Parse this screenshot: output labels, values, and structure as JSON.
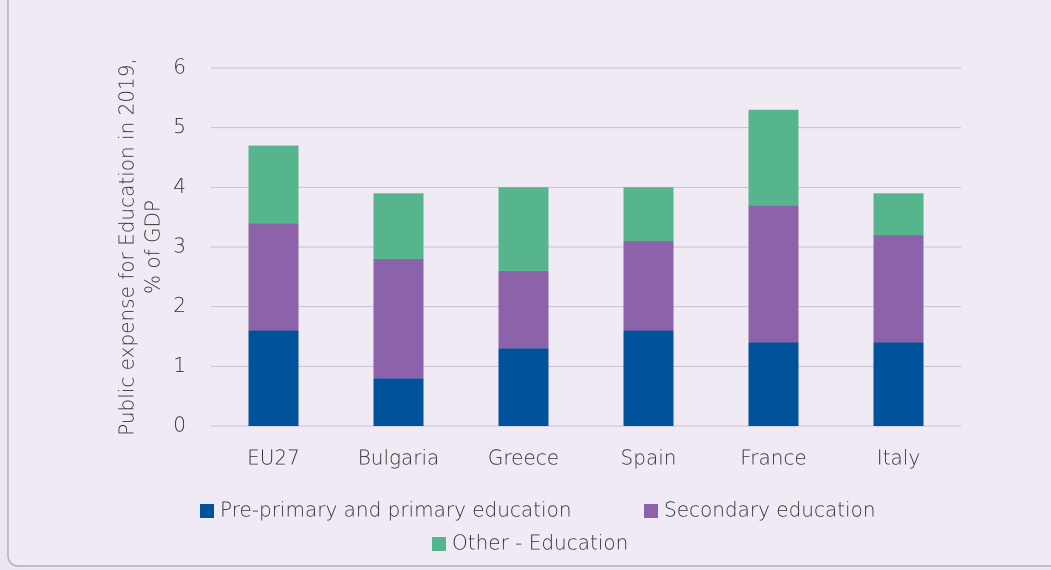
{
  "chart_data": {
    "type": "stacked_bar",
    "y_label": [
      "Public expense for Education in 2019,",
      "% of GDP"
    ],
    "categories": [
      "EU27",
      "Bulgaria",
      "Greece",
      "Spain",
      "France",
      "Italy"
    ],
    "series": [
      {
        "name": "Pre-primary and primary education",
        "color": "#00529b",
        "values": [
          1.6,
          0.8,
          1.3,
          1.6,
          1.4,
          1.4
        ]
      },
      {
        "name": "Secondary education",
        "color": "#8c62aa",
        "values": [
          1.8,
          2.0,
          1.3,
          1.5,
          2.3,
          1.8
        ]
      },
      {
        "name": "Other - Education",
        "color": "#57b58d",
        "values": [
          1.3,
          1.1,
          1.4,
          0.9,
          1.6,
          0.7
        ]
      }
    ],
    "ylim": [
      0,
      6
    ],
    "yticks": [
      0,
      1,
      2,
      3,
      4,
      5,
      6
    ],
    "grid": true,
    "legend": "bottom"
  }
}
